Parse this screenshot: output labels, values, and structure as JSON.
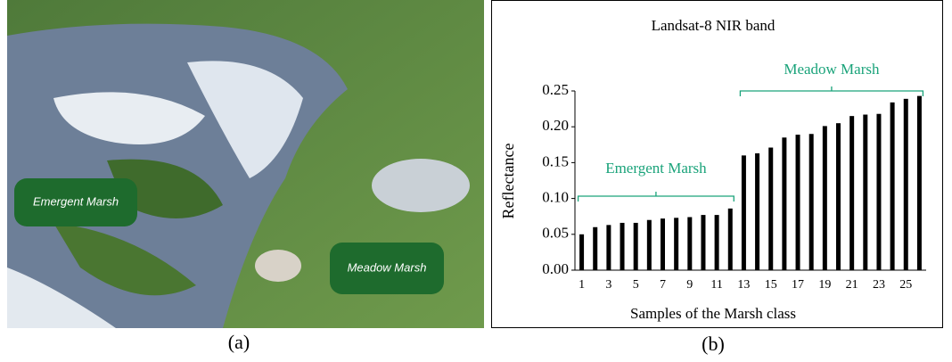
{
  "chart_data": {
    "type": "bar",
    "title": "Landsat-8 NIR band",
    "x_label": "Samples of the Marsh class",
    "y_label": "Reflectance",
    "categories": [
      "1",
      null,
      "3",
      null,
      "5",
      null,
      "7",
      null,
      "9",
      null,
      "11",
      null,
      "13",
      null,
      "15",
      null,
      "17",
      null,
      "19",
      null,
      "21",
      null,
      "23",
      null,
      "25",
      null
    ],
    "values": [
      0.05,
      0.06,
      0.063,
      0.066,
      0.066,
      0.07,
      0.072,
      0.073,
      0.074,
      0.077,
      0.077,
      0.086,
      0.16,
      0.163,
      0.171,
      0.185,
      0.189,
      0.19,
      0.201,
      0.205,
      0.215,
      0.217,
      0.218,
      0.234,
      0.239,
      0.243
    ],
    "color": "#000000",
    "ylim": [
      0,
      0.25
    ],
    "yticks": [
      {
        "value": 0,
        "label": "0.00"
      },
      {
        "value": 0.05,
        "label": "0.05"
      },
      {
        "value": 0.1,
        "label": "0.10"
      },
      {
        "value": 0.15,
        "label": "0.15"
      },
      {
        "value": 0.2,
        "label": "0.20"
      },
      {
        "value": 0.25,
        "label": "0.25"
      }
    ],
    "grid": false,
    "annotations": [
      "Emergent Marsh",
      "Meadow Marsh"
    ],
    "annotation_color": "#1aa37a"
  },
  "panels": {
    "a": {
      "caption": "(a)",
      "labels": [
        "Emergent Marsh",
        "Meadow Marsh"
      ]
    },
    "b": {
      "caption": "(b)"
    }
  }
}
